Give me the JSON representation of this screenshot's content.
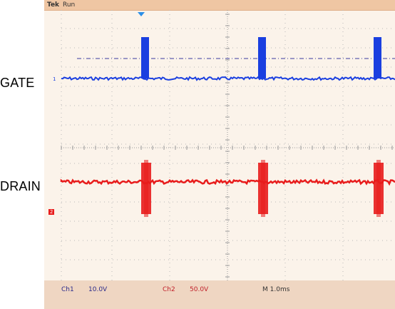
{
  "scope": {
    "brand": "Tek",
    "state": "Run"
  },
  "labels": {
    "gate": "GATE",
    "drain": "DRAIN"
  },
  "channels": [
    {
      "id": "Ch1",
      "scale": "10.0V",
      "color": "#1a3fe0"
    },
    {
      "id": "Ch2",
      "scale": "50.0V",
      "color": "#e81c1c"
    }
  ],
  "timebase": "M 1.0ms",
  "markers": {
    "ch1_ground": "1",
    "ch2_ground": "2"
  },
  "colors": {
    "grid": "#b8b8b8",
    "trigger_level": "#3b3ba0",
    "trigger_marker": "#2b8fe8"
  }
}
